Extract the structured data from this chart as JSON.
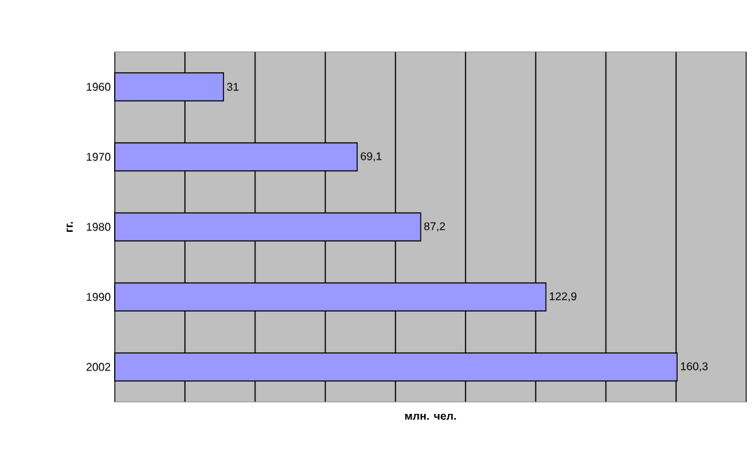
{
  "chart_data": {
    "type": "bar",
    "orientation": "horizontal",
    "xlabel": "млн. чел.",
    "ylabel": "гг.",
    "categories": [
      "1960",
      "1970",
      "1980",
      "1990",
      "2002"
    ],
    "values": [
      31,
      69.1,
      87.2,
      122.9,
      160.3
    ],
    "value_labels": [
      "31",
      "69,1",
      "87,2",
      "122,9",
      "160,3"
    ],
    "color": "#9999ff",
    "xlim": [
      0,
      180
    ],
    "xticks": [
      {
        "value": 0,
        "label": null
      },
      {
        "value": 20,
        "label": null
      },
      {
        "value": 40,
        "label": null
      },
      {
        "value": 60,
        "label": null
      },
      {
        "value": 80,
        "label": null
      },
      {
        "value": 100,
        "label": null
      },
      {
        "value": 120,
        "label": null
      },
      {
        "value": 140,
        "label": null
      },
      {
        "value": 160,
        "label": null
      },
      {
        "value": 180,
        "label": null
      }
    ],
    "tick_labels": "y",
    "grid": "x"
  }
}
